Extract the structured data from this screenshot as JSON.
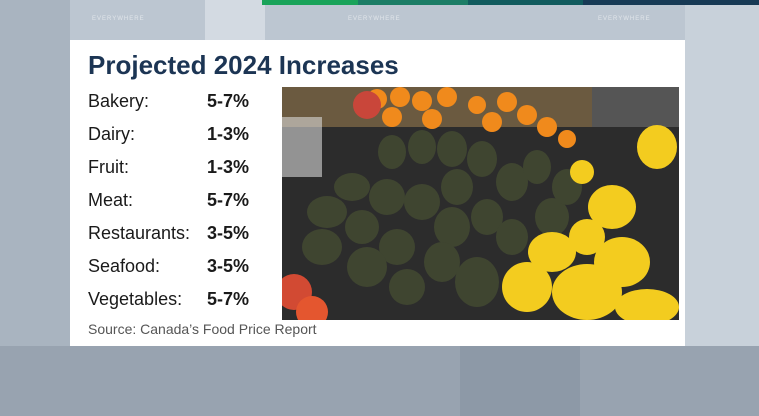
{
  "header": {
    "title": "Projected 2024 Increases"
  },
  "background_labels": [
    "EVERYWHERE",
    "EVERYWHERE",
    "EVERYWHERE"
  ],
  "items": [
    {
      "category": "Bakery:",
      "range": "5-7%"
    },
    {
      "category": "Dairy:",
      "range": "1-3%"
    },
    {
      "category": "Fruit:",
      "range": "1-3%"
    },
    {
      "category": "Meat:",
      "range": "5-7%"
    },
    {
      "category": "Restaurants:",
      "range": "3-5%"
    },
    {
      "category": "Seafood:",
      "range": "3-5%"
    },
    {
      "category": "Vegetables:",
      "range": "5-7%"
    }
  ],
  "source": "Source: Canada’s Food Price Report"
}
